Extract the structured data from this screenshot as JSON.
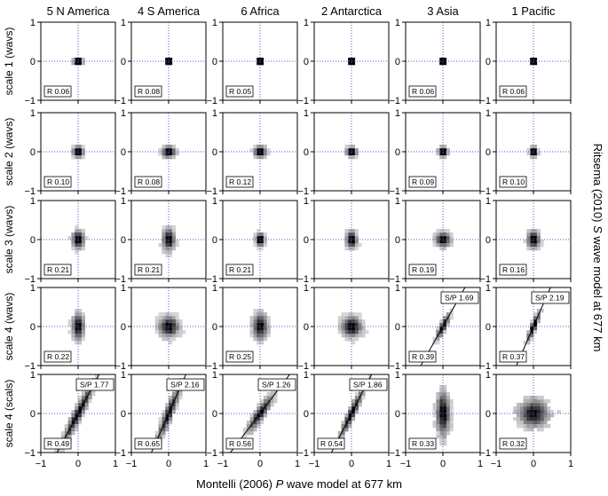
{
  "columns": [
    "5 N America",
    "4 S America",
    "6 Africa",
    "2 Antarctica",
    "3 Asia",
    "1 Pacific"
  ],
  "rows": [
    "scale 1 (wavs)",
    "scale 2 (wavs)",
    "scale 3 (wavs)",
    "scale 4 (wavs)",
    "scale 4 (scals)"
  ],
  "x_axis_title": "Montelli (2006) P wave model at 677 km",
  "x_axis_title_parts": [
    "Montelli (2006) ",
    "P",
    " wave model at 677 km"
  ],
  "y_axis_title": "Ritsema (2010) S wave model at 677 km",
  "y_axis_title_parts": [
    "Ritsema (2010) ",
    "S",
    " wave model at 677 km"
  ],
  "chart_data": {
    "type": "heatmap",
    "layout": "small-multiples 5 rows x 6 columns",
    "xlim": [
      -1,
      1
    ],
    "ylim": [
      -1,
      1
    ],
    "xticks": [
      -1,
      0,
      1
    ],
    "yticks": [
      -1,
      0,
      1
    ],
    "x_tick_labels": [
      "−1",
      "0",
      "1"
    ],
    "y_tick_labels": [
      "1",
      "0",
      "−1"
    ],
    "reference_lines": {
      "x": 0,
      "y": 0,
      "style": "dotted",
      "color": "#5555cc"
    },
    "r_values": [
      [
        "R 0.06",
        "R 0.08",
        "R 0.05",
        "",
        "R 0.06",
        "R 0.06"
      ],
      [
        "R 0.10",
        "R 0.08",
        "R 0.12",
        "",
        "R 0.09",
        "R 0.10"
      ],
      [
        "R 0.21",
        "R 0.21",
        "R 0.21",
        "",
        "R 0.19",
        "R 0.16"
      ],
      [
        "R 0.22",
        "",
        "R 0.25",
        "",
        "R 0.39",
        "R 0.37"
      ],
      [
        "R 0.49",
        "R 0.65",
        "R 0.56",
        "R 0.54",
        "R 0.33",
        "R 0.32"
      ]
    ],
    "sp_values": [
      [
        "",
        "",
        "",
        "",
        "",
        ""
      ],
      [
        "",
        "",
        "",
        "",
        "",
        ""
      ],
      [
        "",
        "",
        "",
        "",
        "",
        ""
      ],
      [
        "",
        "",
        "",
        "",
        "S/P 1.69",
        "S/P 2.19"
      ],
      [
        "S/P 1.77",
        "S/P 2.16",
        "S/P 1.26",
        "S/P 1.86",
        "",
        ""
      ]
    ],
    "fit_slopes": [
      [
        null,
        null,
        null,
        null,
        null,
        null
      ],
      [
        null,
        null,
        null,
        null,
        null,
        null
      ],
      [
        null,
        null,
        null,
        null,
        null,
        null
      ],
      [
        null,
        null,
        null,
        null,
        1.69,
        2.19
      ],
      [
        1.77,
        2.16,
        1.26,
        1.86,
        null,
        null
      ]
    ],
    "density_spread": [
      [
        [
          0.05,
          0.02
        ],
        [
          0.02,
          0.02
        ],
        [
          0.02,
          0.02
        ],
        [
          0.03,
          0.02
        ],
        [
          0.03,
          0.02
        ],
        [
          0.02,
          0.02
        ]
      ],
      [
        [
          0.06,
          0.06
        ],
        [
          0.08,
          0.06
        ],
        [
          0.07,
          0.06
        ],
        [
          0.06,
          0.05
        ],
        [
          0.05,
          0.05
        ],
        [
          0.04,
          0.05
        ]
      ],
      [
        [
          0.07,
          0.1
        ],
        [
          0.07,
          0.13
        ],
        [
          0.05,
          0.07
        ],
        [
          0.06,
          0.1
        ],
        [
          0.09,
          0.08
        ],
        [
          0.07,
          0.1
        ]
      ],
      [
        [
          0.07,
          0.15
        ],
        [
          0.12,
          0.12
        ],
        [
          0.09,
          0.15
        ],
        [
          0.12,
          0.12
        ],
        [
          0.08,
          0.14
        ],
        [
          0.07,
          0.13
        ]
      ],
      [
        [
          0.2,
          0.22
        ],
        [
          0.14,
          0.25
        ],
        [
          0.16,
          0.2
        ],
        [
          0.14,
          0.18
        ],
        [
          0.08,
          0.25
        ],
        [
          0.18,
          0.16
        ]
      ]
    ],
    "colors": {
      "density": "grayscale",
      "reference_lines": "#5555cc",
      "fit_line": "#000000",
      "frame": "#000000"
    }
  }
}
